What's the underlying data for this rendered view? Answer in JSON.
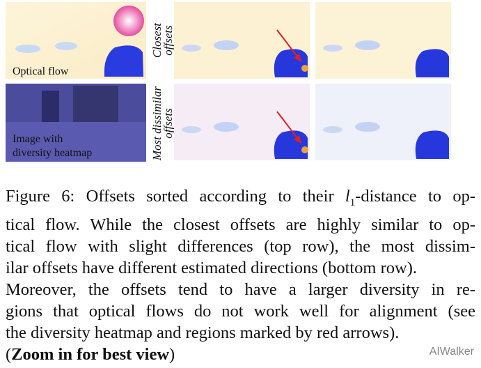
{
  "panels": {
    "optical_flow": "Optical flow",
    "image_heatmap": [
      "Image with",
      "diversity heatmap"
    ],
    "closest_offsets": [
      "Closest",
      "offsets"
    ],
    "most_dissimilar_offsets": [
      "Most dissimilar",
      "offsets"
    ]
  },
  "caption": {
    "line0": {
      "before": "Figure 6: Offsets sorted according to their ",
      "math": "l",
      "subscript": "1",
      "after": "-distance to op-"
    },
    "lines": [
      "tical flow. While the closest offsets are highly similar to op-",
      "tical flow with slight differences (top row), the most dissim-",
      "ilar offsets have different estimated directions (bottom row).",
      "Moreover, the offsets tend to have a larger diversity in re-",
      "gions that optical flows do not work well for alignment (see",
      "the diversity heatmap and regions marked by red arrows)."
    ],
    "last": {
      "open": "(",
      "bold": "Zoom in for best view",
      "close": ")"
    }
  },
  "watermark": "AIWalker"
}
